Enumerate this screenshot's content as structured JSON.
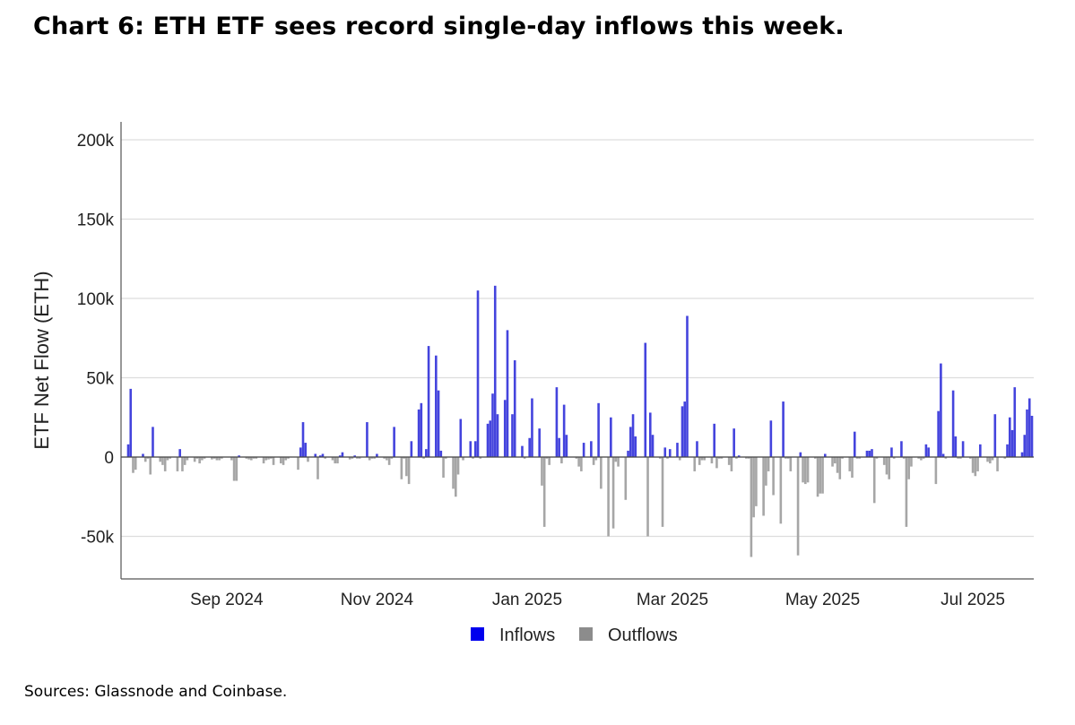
{
  "title": "Chart 6: ETH ETF sees record single-day inflows this week.",
  "source": "Sources: Glassnode and Coinbase.",
  "chart_data": {
    "type": "bar",
    "title": "Chart 6: ETH ETF sees record single-day inflows this week.",
    "ylabel": "ETF Net Flow (ETH)",
    "xlabel": "",
    "ylim": [
      -78000,
      200000
    ],
    "yticks": [
      200000,
      150000,
      100000,
      50000,
      0,
      -50000
    ],
    "ytick_labels": [
      "200k",
      "150k",
      "100k",
      "50k",
      "0",
      "-50k"
    ],
    "xlim": [
      "2024-07-23",
      "2025-07-25"
    ],
    "xticks": [
      "2024-09-01",
      "2024-11-01",
      "2025-01-01",
      "2025-03-01",
      "2025-05-01",
      "2025-07-01"
    ],
    "xtick_labels": [
      "Sep 2024",
      "Nov 2024",
      "Jan 2025",
      "Mar 2025",
      "May 2025",
      "Jul 2025"
    ],
    "grid": true,
    "legend_position": "bottom",
    "legend": [
      "Inflows",
      "Outflows"
    ],
    "colors": {
      "Inflows": "#4444dd",
      "Outflows": "#a6a6a6"
    },
    "bars": [
      [
        "2024-07-23",
        8000
      ],
      [
        "2024-07-24",
        43000
      ],
      [
        "2024-07-25",
        -10000
      ],
      [
        "2024-07-26",
        -8000
      ],
      [
        "2024-07-29",
        2000
      ],
      [
        "2024-07-30",
        -3000
      ],
      [
        "2024-07-31",
        -1000
      ],
      [
        "2024-08-01",
        -11000
      ],
      [
        "2024-08-02",
        19000
      ],
      [
        "2024-08-05",
        -3000
      ],
      [
        "2024-08-06",
        -5000
      ],
      [
        "2024-08-07",
        -9000
      ],
      [
        "2024-08-08",
        -2000
      ],
      [
        "2024-08-09",
        -1000
      ],
      [
        "2024-08-12",
        -9000
      ],
      [
        "2024-08-13",
        5000
      ],
      [
        "2024-08-14",
        -9000
      ],
      [
        "2024-08-15",
        -5000
      ],
      [
        "2024-08-16",
        -2000
      ],
      [
        "2024-08-19",
        -3000
      ],
      [
        "2024-08-20",
        -1000
      ],
      [
        "2024-08-21",
        -4000
      ],
      [
        "2024-08-22",
        -2000
      ],
      [
        "2024-08-23",
        -1000
      ],
      [
        "2024-08-26",
        -1500
      ],
      [
        "2024-08-27",
        -1000
      ],
      [
        "2024-08-28",
        -2000
      ],
      [
        "2024-08-29",
        -2000
      ],
      [
        "2024-08-30",
        -1000
      ],
      [
        "2024-09-03",
        -2000
      ],
      [
        "2024-09-04",
        -15000
      ],
      [
        "2024-09-05",
        -15000
      ],
      [
        "2024-09-06",
        1000
      ],
      [
        "2024-09-09",
        -1000
      ],
      [
        "2024-09-10",
        -1500
      ],
      [
        "2024-09-11",
        -2000
      ],
      [
        "2024-09-12",
        -1000
      ],
      [
        "2024-09-13",
        -1000
      ],
      [
        "2024-09-16",
        -4000
      ],
      [
        "2024-09-17",
        -2000
      ],
      [
        "2024-09-18",
        -1500
      ],
      [
        "2024-09-19",
        -1000
      ],
      [
        "2024-09-20",
        -5000
      ],
      [
        "2024-09-23",
        -4000
      ],
      [
        "2024-09-24",
        -5000
      ],
      [
        "2024-09-25",
        -2000
      ],
      [
        "2024-09-26",
        -1000
      ],
      [
        "2024-09-27",
        300
      ],
      [
        "2024-09-30",
        -8000
      ],
      [
        "2024-10-01",
        6000
      ],
      [
        "2024-10-02",
        22000
      ],
      [
        "2024-10-03",
        9000
      ],
      [
        "2024-10-04",
        -3000
      ],
      [
        "2024-10-07",
        2000
      ],
      [
        "2024-10-08",
        -14000
      ],
      [
        "2024-10-09",
        1000
      ],
      [
        "2024-10-10",
        2000
      ],
      [
        "2024-10-11",
        -1000
      ],
      [
        "2024-10-14",
        -2000
      ],
      [
        "2024-10-15",
        -4000
      ],
      [
        "2024-10-16",
        -4000
      ],
      [
        "2024-10-17",
        1000
      ],
      [
        "2024-10-18",
        3000
      ],
      [
        "2024-10-21",
        -1500
      ],
      [
        "2024-10-22",
        -1000
      ],
      [
        "2024-10-23",
        1000
      ],
      [
        "2024-10-24",
        -1000
      ],
      [
        "2024-10-25",
        -1000
      ],
      [
        "2024-10-28",
        22000
      ],
      [
        "2024-10-29",
        -2000
      ],
      [
        "2024-10-30",
        -1000
      ],
      [
        "2024-10-31",
        -1000
      ],
      [
        "2024-11-01",
        2000
      ],
      [
        "2024-11-04",
        -1000
      ],
      [
        "2024-11-05",
        -2000
      ],
      [
        "2024-11-06",
        -5000
      ],
      [
        "2024-11-07",
        -1000
      ],
      [
        "2024-11-08",
        19000
      ],
      [
        "2024-11-11",
        -14000
      ],
      [
        "2024-11-12",
        -1000
      ],
      [
        "2024-11-13",
        -12000
      ],
      [
        "2024-11-14",
        -17000
      ],
      [
        "2024-11-15",
        10000
      ],
      [
        "2024-11-18",
        30000
      ],
      [
        "2024-11-19",
        34000
      ],
      [
        "2024-11-20",
        -1000
      ],
      [
        "2024-11-21",
        5000
      ],
      [
        "2024-11-22",
        70000
      ],
      [
        "2024-11-25",
        64000
      ],
      [
        "2024-11-26",
        42000
      ],
      [
        "2024-11-27",
        4000
      ],
      [
        "2024-11-28",
        -13000
      ],
      [
        "2024-11-29",
        -1000
      ],
      [
        "2024-12-02",
        -20000
      ],
      [
        "2024-12-03",
        -25000
      ],
      [
        "2024-12-04",
        -11000
      ],
      [
        "2024-12-05",
        24000
      ],
      [
        "2024-12-06",
        -2000
      ],
      [
        "2024-12-09",
        10000
      ],
      [
        "2024-12-10",
        -1000
      ],
      [
        "2024-12-11",
        10000
      ],
      [
        "2024-12-12",
        105000
      ],
      [
        "2024-12-13",
        -1000
      ],
      [
        "2024-12-16",
        21000
      ],
      [
        "2024-12-17",
        23000
      ],
      [
        "2024-12-18",
        40000
      ],
      [
        "2024-12-19",
        108000
      ],
      [
        "2024-12-20",
        27000
      ],
      [
        "2024-12-23",
        36000
      ],
      [
        "2024-12-24",
        80000
      ],
      [
        "2024-12-26",
        27000
      ],
      [
        "2024-12-27",
        61000
      ],
      [
        "2024-12-30",
        7000
      ],
      [
        "2024-12-31",
        -1000
      ],
      [
        "2025-01-02",
        12000
      ],
      [
        "2025-01-03",
        37000
      ],
      [
        "2025-01-06",
        18000
      ],
      [
        "2025-01-07",
        -18000
      ],
      [
        "2025-01-08",
        -44000
      ],
      [
        "2025-01-09",
        -1000
      ],
      [
        "2025-01-10",
        -5000
      ],
      [
        "2025-01-13",
        44000
      ],
      [
        "2025-01-14",
        12000
      ],
      [
        "2025-01-15",
        -4000
      ],
      [
        "2025-01-16",
        33000
      ],
      [
        "2025-01-17",
        14000
      ],
      [
        "2025-01-21",
        -1000
      ],
      [
        "2025-01-22",
        -6000
      ],
      [
        "2025-01-23",
        -9000
      ],
      [
        "2025-01-24",
        9000
      ],
      [
        "2025-01-27",
        10000
      ],
      [
        "2025-01-28",
        -5000
      ],
      [
        "2025-01-29",
        -2000
      ],
      [
        "2025-01-30",
        34000
      ],
      [
        "2025-01-31",
        -20000
      ],
      [
        "2025-02-03",
        -50000
      ],
      [
        "2025-02-04",
        25000
      ],
      [
        "2025-02-05",
        -45000
      ],
      [
        "2025-02-06",
        -3000
      ],
      [
        "2025-02-07",
        -6000
      ],
      [
        "2025-02-10",
        -27000
      ],
      [
        "2025-02-11",
        4000
      ],
      [
        "2025-02-12",
        19000
      ],
      [
        "2025-02-13",
        27000
      ],
      [
        "2025-02-14",
        13000
      ],
      [
        "2025-02-18",
        72000
      ],
      [
        "2025-02-19",
        -50000
      ],
      [
        "2025-02-20",
        28000
      ],
      [
        "2025-02-21",
        14000
      ],
      [
        "2025-02-24",
        -1000
      ],
      [
        "2025-02-25",
        -44000
      ],
      [
        "2025-02-26",
        6000
      ],
      [
        "2025-02-27",
        -1000
      ],
      [
        "2025-02-28",
        5000
      ],
      [
        "2025-03-03",
        9000
      ],
      [
        "2025-03-04",
        -2000
      ],
      [
        "2025-03-05",
        32000
      ],
      [
        "2025-03-06",
        35000
      ],
      [
        "2025-03-07",
        89000
      ],
      [
        "2025-03-10",
        -9000
      ],
      [
        "2025-03-11",
        10000
      ],
      [
        "2025-03-12",
        -5000
      ],
      [
        "2025-03-13",
        -2000
      ],
      [
        "2025-03-14",
        -2000
      ],
      [
        "2025-03-17",
        -4000
      ],
      [
        "2025-03-18",
        21000
      ],
      [
        "2025-03-19",
        -7000
      ],
      [
        "2025-03-20",
        -1000
      ],
      [
        "2025-03-21",
        -1000
      ],
      [
        "2025-03-24",
        -5000
      ],
      [
        "2025-03-25",
        -9000
      ],
      [
        "2025-03-26",
        18000
      ],
      [
        "2025-03-27",
        -1000
      ],
      [
        "2025-03-28",
        1000
      ],
      [
        "2025-03-31",
        -1000
      ],
      [
        "2025-04-01",
        -1000
      ],
      [
        "2025-04-02",
        -63000
      ],
      [
        "2025-04-03",
        -38000
      ],
      [
        "2025-04-04",
        -31000
      ],
      [
        "2025-04-07",
        -37000
      ],
      [
        "2025-04-08",
        -18000
      ],
      [
        "2025-04-09",
        -9000
      ],
      [
        "2025-04-10",
        23000
      ],
      [
        "2025-04-11",
        -24000
      ],
      [
        "2025-04-14",
        -42000
      ],
      [
        "2025-04-15",
        35000
      ],
      [
        "2025-04-16",
        -1000
      ],
      [
        "2025-04-17",
        -1000
      ],
      [
        "2025-04-18",
        -9000
      ],
      [
        "2025-04-21",
        -62000
      ],
      [
        "2025-04-22",
        3000
      ],
      [
        "2025-04-23",
        -16000
      ],
      [
        "2025-04-24",
        -17000
      ],
      [
        "2025-04-25",
        -16000
      ],
      [
        "2025-04-28",
        -1000
      ],
      [
        "2025-04-29",
        -25000
      ],
      [
        "2025-04-30",
        -23000
      ],
      [
        "2025-05-01",
        -23000
      ],
      [
        "2025-05-02",
        2000
      ],
      [
        "2025-05-05",
        -6000
      ],
      [
        "2025-05-06",
        -4000
      ],
      [
        "2025-05-07",
        -10000
      ],
      [
        "2025-05-08",
        -14000
      ],
      [
        "2025-05-09",
        -1000
      ],
      [
        "2025-05-12",
        -9000
      ],
      [
        "2025-05-13",
        -13000
      ],
      [
        "2025-05-14",
        16000
      ],
      [
        "2025-05-15",
        -1000
      ],
      [
        "2025-05-16",
        -1000
      ],
      [
        "2025-05-19",
        4000
      ],
      [
        "2025-05-20",
        4000
      ],
      [
        "2025-05-21",
        5000
      ],
      [
        "2025-05-22",
        -29000
      ],
      [
        "2025-05-23",
        -1000
      ],
      [
        "2025-05-26",
        -5000
      ],
      [
        "2025-05-27",
        -11000
      ],
      [
        "2025-05-28",
        -14000
      ],
      [
        "2025-05-29",
        6000
      ],
      [
        "2025-05-30",
        -1000
      ],
      [
        "2025-06-02",
        10000
      ],
      [
        "2025-06-03",
        -1000
      ],
      [
        "2025-06-04",
        -44000
      ],
      [
        "2025-06-05",
        -14000
      ],
      [
        "2025-06-06",
        -6000
      ],
      [
        "2025-06-09",
        -1000
      ],
      [
        "2025-06-10",
        -2000
      ],
      [
        "2025-06-11",
        -1000
      ],
      [
        "2025-06-12",
        8000
      ],
      [
        "2025-06-13",
        6000
      ],
      [
        "2025-06-16",
        -17000
      ],
      [
        "2025-06-17",
        29000
      ],
      [
        "2025-06-18",
        59000
      ],
      [
        "2025-06-19",
        2000
      ],
      [
        "2025-06-20",
        -1000
      ],
      [
        "2025-06-23",
        42000
      ],
      [
        "2025-06-24",
        13000
      ],
      [
        "2025-06-25",
        -1000
      ],
      [
        "2025-06-26",
        -1000
      ],
      [
        "2025-06-27",
        10000
      ],
      [
        "2025-06-30",
        -1000
      ],
      [
        "2025-07-01",
        -10000
      ],
      [
        "2025-07-02",
        -12000
      ],
      [
        "2025-07-03",
        -9000
      ],
      [
        "2025-07-04",
        8000
      ],
      [
        "2025-07-07",
        -3000
      ],
      [
        "2025-07-08",
        -4000
      ],
      [
        "2025-07-09",
        -2000
      ],
      [
        "2025-07-10",
        27000
      ],
      [
        "2025-07-11",
        -9000
      ],
      [
        "2025-07-14",
        -1000
      ],
      [
        "2025-07-15",
        8000
      ],
      [
        "2025-07-16",
        25000
      ],
      [
        "2025-07-17",
        17000
      ],
      [
        "2025-07-18",
        44000
      ],
      [
        "2025-07-21",
        3000
      ],
      [
        "2025-07-22",
        14000
      ],
      [
        "2025-07-23",
        30000
      ],
      [
        "2025-07-24",
        37000
      ],
      [
        "2025-07-25",
        26000
      ]
    ]
  }
}
